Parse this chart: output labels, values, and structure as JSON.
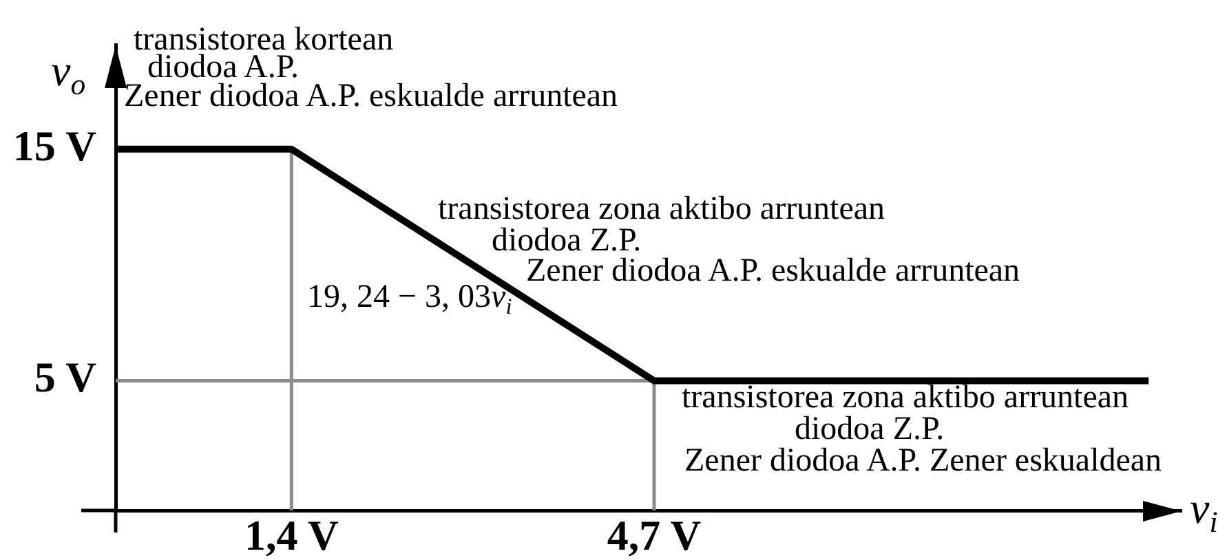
{
  "chart_data": {
    "type": "line",
    "xlabel": "v$_{i}$",
    "ylabel": "v$_{o}$",
    "x": [
      -0.2,
      1.4,
      4.7,
      9.2
    ],
    "series": [
      {
        "color": "#000000",
        "values": [
          15,
          15,
          5,
          5
        ]
      }
    ],
    "xlim": [
      -0.2,
      9.5
    ],
    "ylim": [
      -0.6,
      19.5
    ],
    "xticks": [
      {
        "value": 1.4,
        "label": "1,4 V"
      },
      {
        "value": 4.7,
        "label": "4,7 V"
      }
    ],
    "yticks": [
      {
        "value": 5,
        "label": "5 V"
      },
      {
        "value": 15,
        "label": "15 V"
      }
    ],
    "ref_lines": [
      {
        "axis": "x",
        "value": 1.4,
        "color": "#8c8c8c"
      },
      {
        "axis": "x",
        "value": 4.7,
        "color": "#8c8c8c"
      },
      {
        "axis": "y",
        "value": 5,
        "color": "#8c8c8c"
      }
    ],
    "annotations": [
      "transistorea kortean",
      "diodoa A.P.",
      "Zener diodoa A.P. eskualde arruntean",
      "transistorea zona aktibo arruntean",
      "diodoa Z.P.",
      "Zener diodoa A.P. eskualde arruntean",
      "19, 24 − 3, 03v$_{i}$",
      "transistorea zona aktibo arruntean",
      "diodoa Z.P.",
      "Zener diodoa A.P. Zener eskualdean"
    ]
  }
}
